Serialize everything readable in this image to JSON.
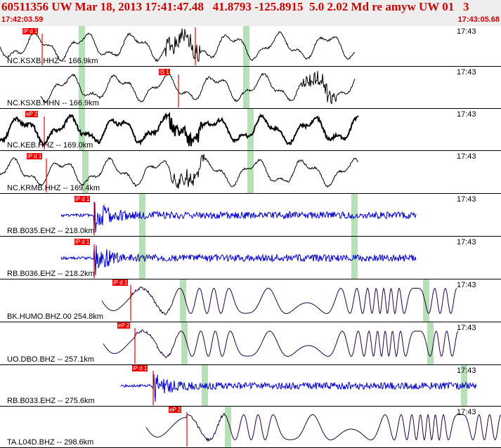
{
  "header": {
    "title": "60511356 UW Mar 18, 2013 17:41:47.48   41.8793 -125.8915  5.0 2.02 Md re amyw UW 01   3",
    "start_time": "17:42:03.59",
    "end_time": "17:43:05.68"
  },
  "colors": {
    "header_text": "#cc0000",
    "pick": "#ee0000",
    "vertical_trace": "#000000",
    "blue_trace": "#0000cc",
    "purple_trace": "#220044",
    "highlight": "#b8e0b8"
  },
  "panels": [
    {
      "label": "NC.KSXB.HHZ -- 166.9km",
      "time": "17:43",
      "pick": "iP d 1",
      "color": "black"
    },
    {
      "label": "NC.KSXB.HHN -- 166.9km",
      "time": "17:43",
      "pick": "iS 1",
      "color": "black"
    },
    {
      "label": "NC.KEB.HHZ -- 169.0km",
      "time": "17:43",
      "pick": "eP 2",
      "color": "black"
    },
    {
      "label": "NC.KRMB.HHZ -- 169.4km",
      "time": "17:43",
      "pick": "iP d 1",
      "color": "black"
    },
    {
      "label": "RB.B035.EHZ -- 218.0km",
      "time": "17:43",
      "pick": "iP d 1",
      "color": "blue"
    },
    {
      "label": "RB.B036.EHZ -- 218.2km",
      "time": "17:43",
      "pick": "iP d 1",
      "color": "blue"
    },
    {
      "label": "BK.HUMO.BHZ.00 254.8km",
      "time": "17:43",
      "pick": "iP d 1",
      "color": "purple"
    },
    {
      "label": "UO.DBO.BHZ -- 257.1km",
      "time": "17:43",
      "pick": "eP 2",
      "color": "purple"
    },
    {
      "label": "RB.B033.EHZ -- 275.6km",
      "time": "17:43",
      "pick": "iP d 1",
      "color": "blue"
    },
    {
      "label": "TA.L04D.BHZ -- 298.6km",
      "time": "17:43",
      "pick": "eP 2",
      "color": "purple"
    }
  ]
}
